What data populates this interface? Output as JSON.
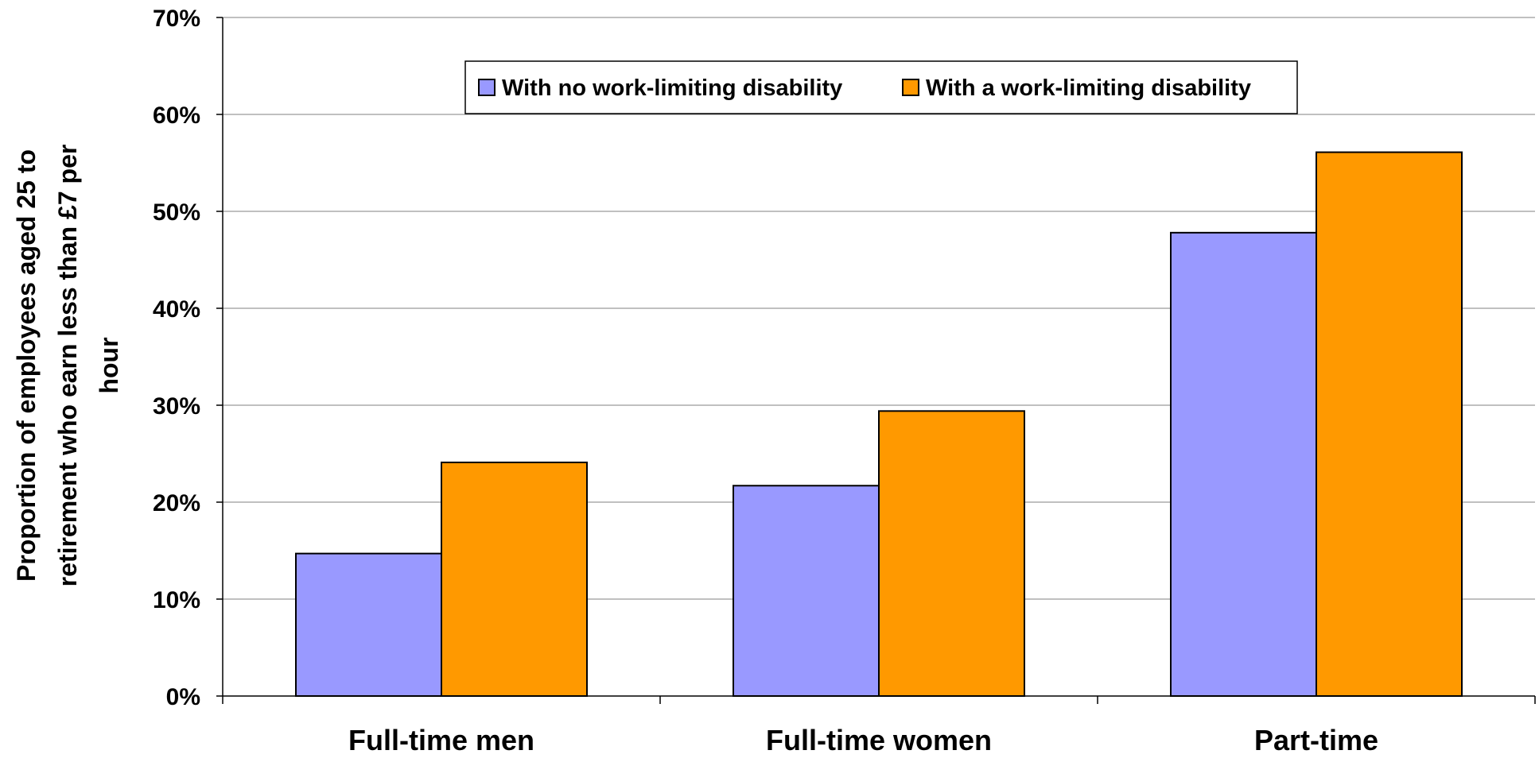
{
  "chart_data": {
    "type": "bar",
    "title": "",
    "xlabel": "",
    "ylabel_lines": [
      "Proportion of employees aged 25 to",
      "retirement who earn less than £7 per",
      "hour"
    ],
    "categories": [
      "Full-time men",
      "Full-time women",
      "Part-time"
    ],
    "series": [
      {
        "name": "With no work-limiting disability",
        "color": "#9999FF",
        "values": [
          0.147,
          0.217,
          0.478
        ]
      },
      {
        "name": "With a work-limiting disability",
        "color": "#FF9900",
        "values": [
          0.241,
          0.294,
          0.561
        ]
      }
    ],
    "ylim": [
      0,
      0.7
    ],
    "y_ticks": [
      0,
      0.1,
      0.2,
      0.3,
      0.4,
      0.5,
      0.6,
      0.7
    ],
    "y_tick_labels": [
      "0%",
      "10%",
      "20%",
      "30%",
      "40%",
      "50%",
      "60%",
      "70%"
    ],
    "grid": true,
    "legend_position": "top-center"
  }
}
